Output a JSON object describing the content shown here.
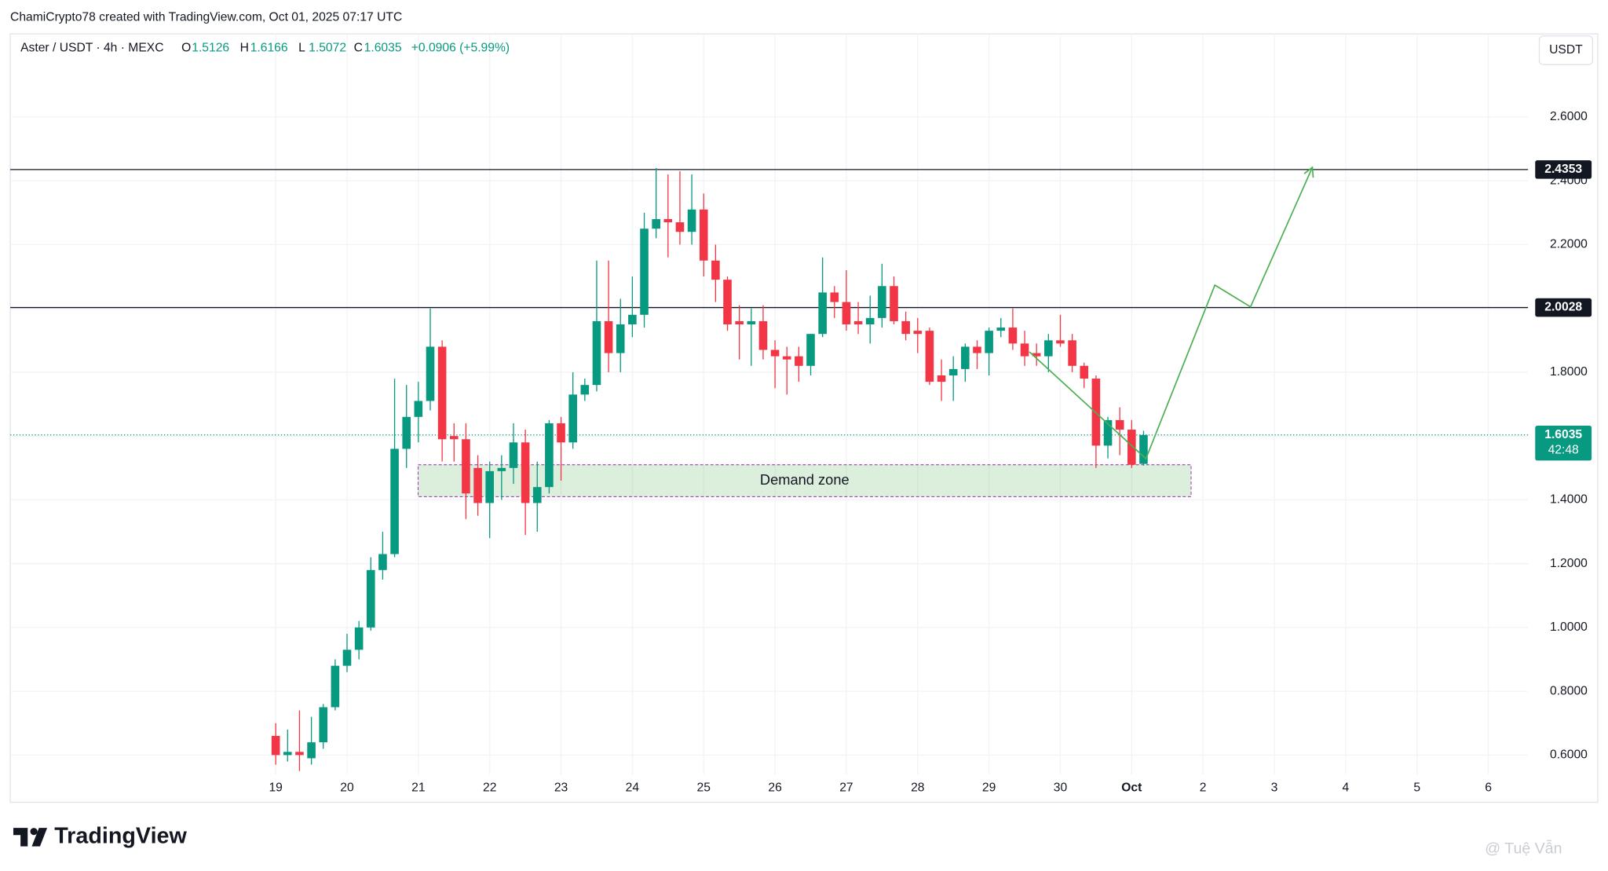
{
  "header": {
    "credit": "ChamiCrypto78 created with TradingView.com, Oct 01, 2025 07:17 UTC"
  },
  "chart_data": {
    "type": "candlestick",
    "symbol": "Aster / USDT · 4h · MEXC",
    "ohlc_letters": [
      "O",
      "H",
      "L",
      "C"
    ],
    "change_label": "+0.0906 (+5.99%)",
    "currency": "USDT",
    "countdown": "42:48",
    "up_color": "#089981",
    "down_color": "#f23645",
    "grid": true,
    "ohlc": {
      "open": [
        0.66,
        0.6,
        0.61,
        0.59,
        0.64,
        0.75,
        0.88,
        0.93,
        1.0,
        1.18,
        1.23,
        1.56,
        1.66,
        1.71,
        1.88,
        1.6,
        1.59,
        1.5,
        1.39,
        1.49,
        1.5,
        1.58,
        1.39,
        1.44,
        1.64,
        1.58,
        1.73,
        1.76,
        1.96,
        1.86,
        1.95,
        1.98,
        2.25,
        2.28,
        2.27,
        2.24,
        2.31,
        2.15,
        2.09,
        1.96,
        1.95,
        1.96,
        1.87,
        1.85,
        1.85,
        1.82,
        1.92,
        2.05,
        2.02,
        1.96,
        1.95,
        1.97,
        2.07,
        1.96,
        1.93,
        1.93,
        1.79,
        1.79,
        1.81,
        1.88,
        1.86,
        1.93,
        1.94,
        1.89,
        1.86,
        1.85,
        1.9,
        1.9,
        1.82,
        1.78,
        1.57,
        1.65,
        1.62,
        1.5126
      ],
      "high": [
        0.7,
        0.68,
        0.74,
        0.72,
        0.76,
        0.9,
        0.98,
        1.02,
        1.22,
        1.3,
        1.78,
        1.76,
        1.77,
        2.0,
        1.9,
        1.64,
        1.64,
        1.54,
        1.52,
        1.54,
        1.64,
        1.62,
        1.52,
        1.65,
        1.66,
        1.8,
        1.78,
        2.15,
        2.15,
        2.03,
        2.1,
        2.3,
        2.44,
        2.42,
        2.43,
        2.42,
        2.36,
        2.2,
        2.1,
        2.01,
        2.0,
        2.01,
        1.9,
        1.88,
        1.88,
        1.92,
        2.16,
        2.07,
        2.12,
        2.02,
        2.04,
        2.14,
        2.1,
        1.99,
        1.97,
        1.94,
        1.84,
        1.85,
        1.89,
        1.9,
        1.94,
        1.97,
        2.0,
        1.93,
        1.89,
        1.92,
        1.98,
        1.92,
        1.83,
        1.79,
        1.66,
        1.69,
        1.65,
        1.6166
      ],
      "low": [
        0.57,
        0.58,
        0.55,
        0.57,
        0.62,
        0.74,
        0.86,
        0.9,
        0.99,
        1.15,
        1.22,
        1.5,
        1.58,
        1.68,
        1.52,
        1.52,
        1.34,
        1.35,
        1.28,
        1.4,
        1.45,
        1.29,
        1.3,
        1.42,
        1.46,
        1.56,
        1.71,
        1.74,
        1.8,
        1.8,
        1.91,
        1.94,
        2.22,
        2.16,
        2.2,
        2.2,
        2.1,
        2.02,
        1.93,
        1.84,
        1.82,
        1.84,
        1.75,
        1.73,
        1.77,
        1.79,
        1.91,
        1.97,
        1.93,
        1.92,
        1.89,
        1.94,
        1.95,
        1.9,
        1.86,
        1.76,
        1.71,
        1.71,
        1.77,
        1.81,
        1.79,
        1.91,
        1.87,
        1.82,
        1.82,
        1.8,
        1.88,
        1.8,
        1.75,
        1.5,
        1.53,
        1.54,
        1.5,
        1.5072
      ],
      "close": [
        0.6,
        0.61,
        0.6,
        0.64,
        0.75,
        0.88,
        0.93,
        1.0,
        1.18,
        1.23,
        1.56,
        1.66,
        1.71,
        1.88,
        1.59,
        1.59,
        1.42,
        1.39,
        1.49,
        1.5,
        1.58,
        1.39,
        1.44,
        1.64,
        1.58,
        1.73,
        1.76,
        1.96,
        1.86,
        1.95,
        1.98,
        2.25,
        2.28,
        2.27,
        2.24,
        2.31,
        2.15,
        2.09,
        1.95,
        1.95,
        1.96,
        1.87,
        1.85,
        1.84,
        1.82,
        1.92,
        2.05,
        2.02,
        1.95,
        1.95,
        1.97,
        2.07,
        1.96,
        1.92,
        1.92,
        1.77,
        1.77,
        1.81,
        1.88,
        1.86,
        1.93,
        1.94,
        1.89,
        1.85,
        1.85,
        1.9,
        1.89,
        1.82,
        1.78,
        1.57,
        1.65,
        1.62,
        1.51,
        1.6035
      ]
    },
    "xlim": [
      -22.33,
      105.34
    ],
    "xticks": [
      {
        "value": 0,
        "label": "19"
      },
      {
        "value": 6,
        "label": "20"
      },
      {
        "value": 12,
        "label": "21"
      },
      {
        "value": 18,
        "label": "22"
      },
      {
        "value": 24,
        "label": "23"
      },
      {
        "value": 30,
        "label": "24"
      },
      {
        "value": 36,
        "label": "25"
      },
      {
        "value": 42,
        "label": "26"
      },
      {
        "value": 48,
        "label": "27"
      },
      {
        "value": 54,
        "label": "28"
      },
      {
        "value": 60,
        "label": "29"
      },
      {
        "value": 66,
        "label": "30"
      },
      {
        "value": 72,
        "label": "Oct"
      },
      {
        "value": 78,
        "label": "2"
      },
      {
        "value": 84,
        "label": "3"
      },
      {
        "value": 90,
        "label": "4"
      },
      {
        "value": 96,
        "label": "5"
      },
      {
        "value": 102,
        "label": "6"
      }
    ],
    "ylim": [
      0.539,
      2.8605
    ],
    "yticks": [
      {
        "value": 0.6,
        "label": "0.6000"
      },
      {
        "value": 0.8,
        "label": "0.8000"
      },
      {
        "value": 1.0,
        "label": "1.0000"
      },
      {
        "value": 1.2,
        "label": "1.2000"
      },
      {
        "value": 1.4,
        "label": "1.4000"
      },
      {
        "value": 1.6,
        "label": "1.6000"
      },
      {
        "value": 1.8,
        "label": "1.8000"
      },
      {
        "value": 2.0,
        "label": "2.0000"
      },
      {
        "value": 2.2,
        "label": "2.2000"
      },
      {
        "value": 2.4,
        "label": "2.4000"
      },
      {
        "value": 2.6,
        "label": "2.6000"
      }
    ],
    "levels": [
      2.4353,
      2.0028
    ],
    "demand_zone": {
      "label": "Demand zone",
      "top": 1.51,
      "bottom": 1.41,
      "from": 11.98,
      "to": 77.0
    },
    "projection": {
      "x": [
        63.4,
        73.2,
        79.0,
        82.0,
        87.2
      ],
      "y": [
        1.864,
        1.529,
        2.073,
        2.005,
        2.442
      ],
      "color": "#4caf50"
    }
  },
  "footer": {
    "logo": "TradingView",
    "watermark": "@ Tuệ Vẫn"
  }
}
